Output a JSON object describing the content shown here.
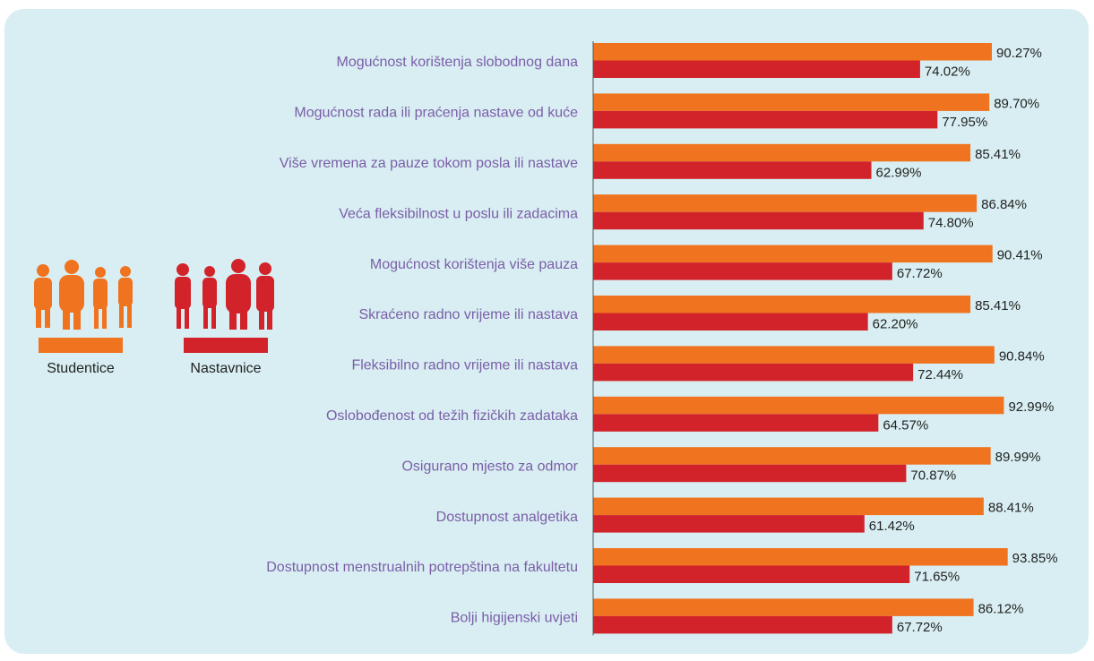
{
  "chart_data": {
    "type": "bar",
    "orientation": "horizontal",
    "categories": [
      "Mogućnost korištenja slobodnog dana",
      "Mogućnost rada ili praćenja nastave od kuće",
      "Više vremena za pauze tokom posla ili nastave",
      "Veća fleksibilnost u poslu ili zadacima",
      "Mogućnost korištenja više pauza",
      "Skraćeno radno vrijeme ili nastava",
      "Fleksibilno radno vrijeme ili nastava",
      "Oslobođenost od težih fizičkih zadataka",
      "Osigurano mjesto za odmor",
      "Dostupnost analgetika",
      "Dostupnost menstrualnih potrepština na fakultetu",
      "Bolji higijenski uvjeti"
    ],
    "series": [
      {
        "name": "Studentice",
        "color": "#f0731f",
        "values": [
          90.27,
          89.7,
          85.41,
          86.84,
          90.41,
          85.41,
          90.84,
          92.99,
          89.99,
          88.41,
          93.85,
          86.12
        ],
        "value_labels": [
          "90.27%",
          "89.70%",
          "85.41%",
          "86.84%",
          "90.41%",
          "85.41%",
          "90.84%",
          "92.99%",
          "89.99%",
          "88.41%",
          "93.85%",
          "86.12%"
        ]
      },
      {
        "name": "Nastavnice",
        "color": "#d2232a",
        "values": [
          74.02,
          77.95,
          62.99,
          74.8,
          67.72,
          62.2,
          72.44,
          64.57,
          70.87,
          61.42,
          71.65,
          67.72
        ],
        "value_labels": [
          "74.02%",
          "77.95%",
          "62.99%",
          "74.80%",
          "67.72%",
          "62.20%",
          "72.44%",
          "64.57%",
          "70.87%",
          "61.42%",
          "71.65%",
          "67.72%"
        ]
      }
    ]
  }
}
